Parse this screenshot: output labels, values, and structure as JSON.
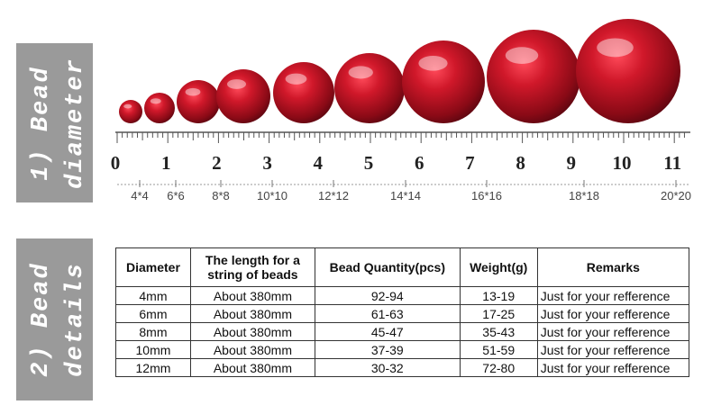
{
  "sections": [
    {
      "label_lines": [
        "1) Bead",
        "diameter"
      ]
    },
    {
      "label_lines": [
        "2) Bead",
        "details"
      ]
    }
  ],
  "ruler": {
    "numbers": [
      0,
      1,
      2,
      3,
      4,
      5,
      6,
      7,
      8,
      9,
      10,
      11
    ],
    "sizes": [
      "4*4",
      "6*6",
      "8*8",
      "10*10",
      "12*12",
      "14*14",
      "16*16",
      "18*18",
      "20*20"
    ]
  },
  "table": {
    "headers": [
      "Diameter",
      "The length for a string of beads",
      "Bead Quantity(pcs)",
      "Weight(g)",
      "Remarks"
    ],
    "rows": [
      [
        "4mm",
        "About 380mm",
        "92-94",
        "13-19",
        "Just for your refference"
      ],
      [
        "6mm",
        "About 380mm",
        "61-63",
        "17-25",
        "Just for your refference"
      ],
      [
        "8mm",
        "About 380mm",
        "45-47",
        "35-43",
        "Just for your refference"
      ],
      [
        "10mm",
        "About 380mm",
        "37-39",
        "51-59",
        "Just for your refference"
      ],
      [
        "12mm",
        "About 380mm",
        "30-32",
        "72-80",
        "Just for your refference"
      ]
    ]
  }
}
